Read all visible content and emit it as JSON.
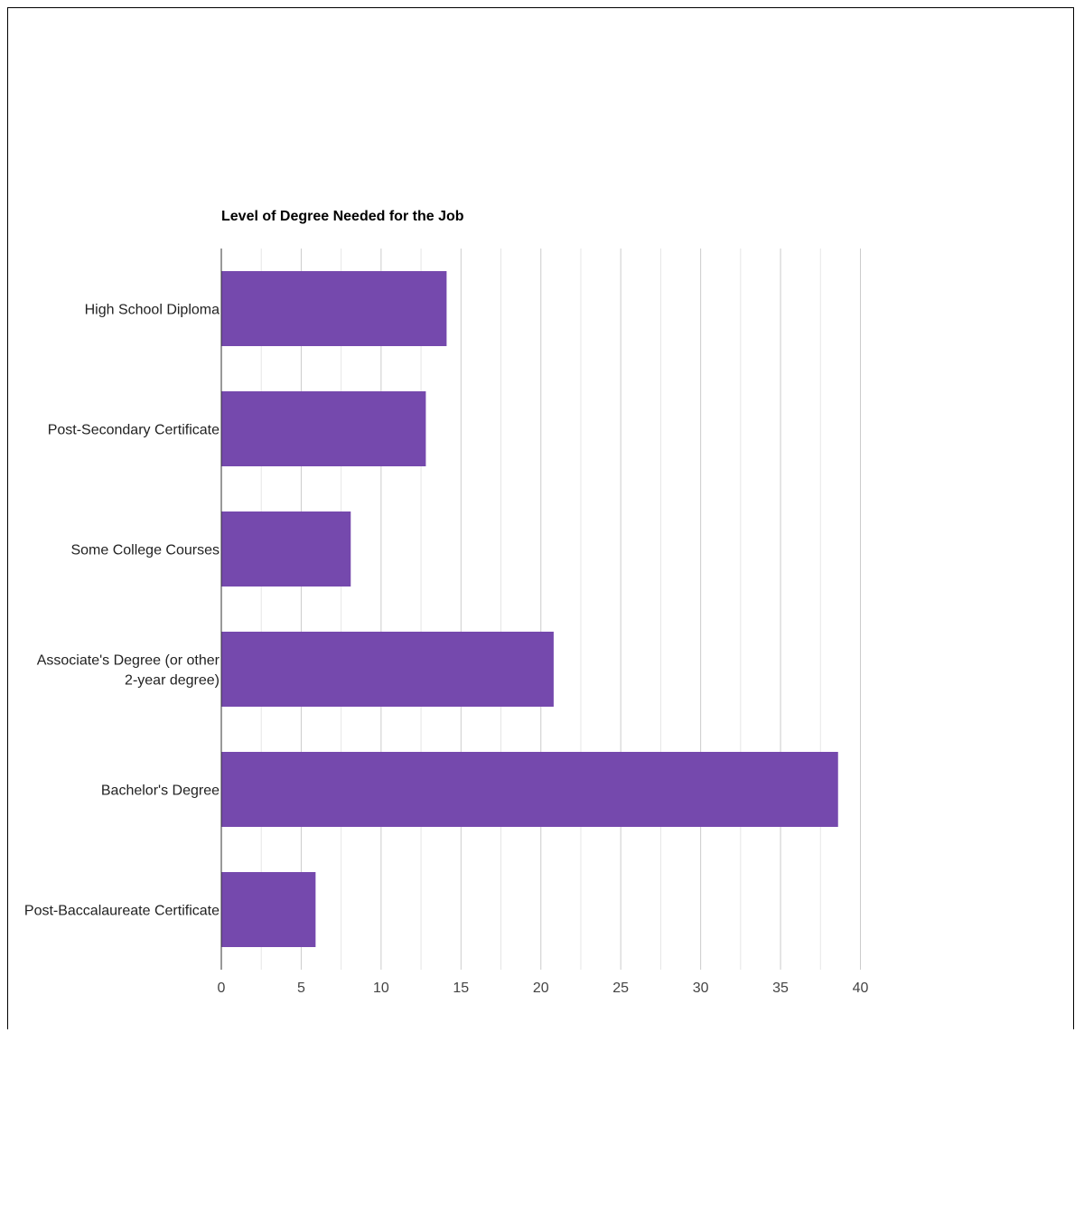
{
  "chart_data": {
    "type": "bar",
    "orientation": "horizontal",
    "title": "Level of Degree Needed for the Job",
    "categories": [
      "High School Diploma",
      "Post-Secondary Certificate",
      "Some College Courses",
      "Associate's Degree (or other 2-year degree)",
      "Bachelor's Degree",
      "Post-Baccalaureate Certificate"
    ],
    "category_lines": [
      [
        "High School Diploma"
      ],
      [
        "Post-Secondary Certificate"
      ],
      [
        "Some College Courses"
      ],
      [
        "Associate's Degree (or other",
        "2-year degree)"
      ],
      [
        "Bachelor's Degree"
      ],
      [
        "Post-Baccalaureate Certificate"
      ]
    ],
    "values": [
      14.1,
      12.8,
      8.1,
      20.8,
      38.6,
      5.9
    ],
    "xlim": [
      0,
      40
    ],
    "x_ticks": [
      0,
      5,
      10,
      15,
      20,
      25,
      30,
      35,
      40
    ],
    "grid": true,
    "legend": "none",
    "colors": {
      "bar": "#7549ad",
      "grid_major": "#cccccc",
      "grid_minor": "#e6e6e6",
      "axis": "#333333",
      "label": "#222222",
      "tick": "#444444",
      "title": "#000000"
    }
  }
}
